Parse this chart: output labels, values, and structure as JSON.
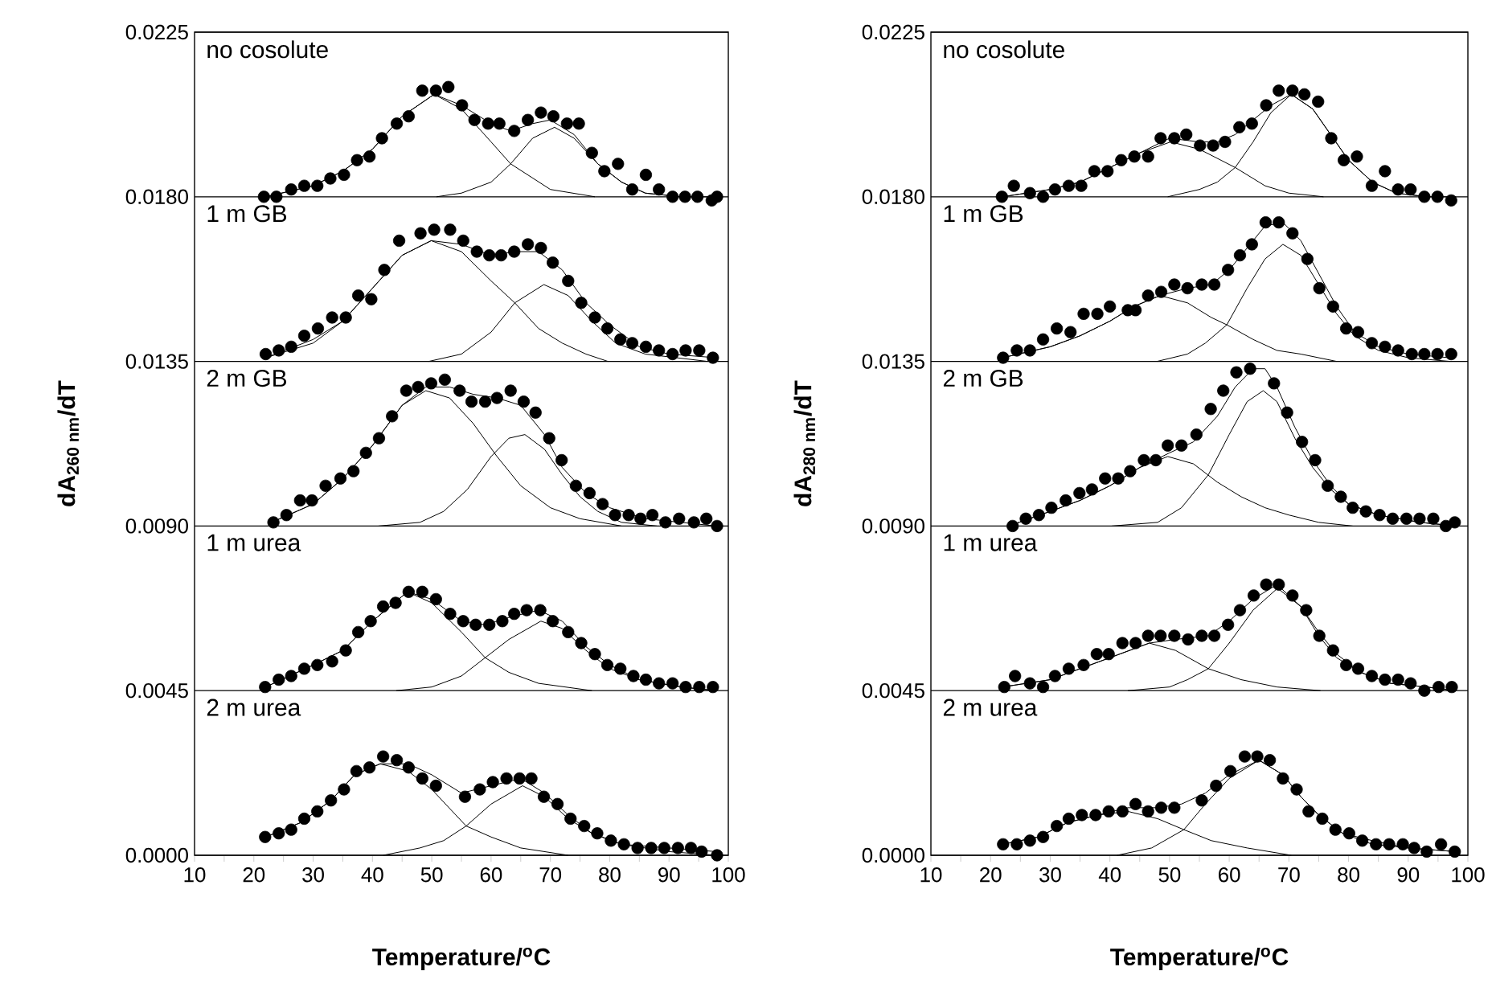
{
  "chart_data": [
    {
      "type": "scatter",
      "xlabel": "Temperature/$^{o}$C",
      "ylabel": "dA$_{260 nm}$/dT",
      "xlim": [
        10,
        100
      ],
      "ylim": [
        0,
        0.0225
      ],
      "xticks": [
        10,
        {
          "value": 15,
          "label": null
        },
        20,
        {
          "value": 25,
          "label": null
        },
        30,
        {
          "value": 35,
          "label": null
        },
        40,
        {
          "value": 45,
          "label": null
        },
        50,
        {
          "value": 55,
          "label": null
        },
        60,
        {
          "value": 65,
          "label": null
        },
        70,
        {
          "value": 75,
          "label": null
        },
        80,
        {
          "value": 85,
          "label": null
        },
        90,
        {
          "value": 95,
          "label": null
        },
        100
      ],
      "yticks": [
        {
          "value": 0,
          "label": "0.0000"
        },
        0.0045,
        {
          "value": 0.009,
          "label": "0.0090"
        },
        0.0135,
        {
          "value": 0.018,
          "label": "0.0180"
        },
        0.0225
      ],
      "grid": "y",
      "annotations": [
        "no cosolute",
        "1 m GB",
        "2 m GB",
        "1 m urea",
        "2 m urea"
      ],
      "series": [
        {
          "color": "#000000",
          "marker": "circle",
          "x": [
            21.7,
            23.8,
            26.3,
            28.5,
            30.7,
            32.9,
            35.2,
            37.4,
            39.5,
            41.6,
            44.1,
            46.1,
            48.4,
            50.7,
            52.8,
            55.1,
            57.2,
            59.5,
            61.4,
            63.9,
            66.2,
            68.4,
            70.5,
            72.8,
            74.8,
            77.0,
            79.1,
            81.4,
            83.8,
            86.1,
            88.3,
            90.6,
            92.7,
            94.8,
            97.2,
            98.1
          ],
          "values": [
            0.018,
            0.018,
            0.0182,
            0.0183,
            0.0183,
            0.0185,
            0.0186,
            0.019,
            0.0191,
            0.0196,
            0.02,
            0.0202,
            0.0209,
            0.0209,
            0.021,
            0.0205,
            0.0201,
            0.02,
            0.02,
            0.0198,
            0.0201,
            0.0203,
            0.0202,
            0.02,
            0.02,
            0.0192,
            0.0187,
            0.0189,
            0.0182,
            0.0186,
            0.0182,
            0.018,
            0.018,
            0.018,
            0.0179,
            0.018
          ]
        },
        {
          "type": "line",
          "color": "#000000",
          "marker": "none",
          "x": [
            22,
            30,
            35,
            40,
            45,
            50.4,
            55,
            60,
            63.3,
            67,
            70,
            74,
            78,
            82,
            86,
            92,
            98
          ],
          "values": [
            0.018,
            0.0183,
            0.0187,
            0.0193,
            0.0202,
            0.0208,
            0.0205,
            0.02,
            0.0198,
            0.02,
            0.0201,
            0.0197,
            0.0189,
            0.0184,
            0.0181,
            0.018,
            0.018
          ]
        },
        {
          "type": "line",
          "color": "#000000",
          "marker": "none",
          "x": [
            22,
            30,
            35,
            40,
            45,
            50.4,
            55,
            60,
            63.3,
            70,
            77.5
          ],
          "values": [
            0.018,
            0.0183,
            0.0187,
            0.0193,
            0.0202,
            0.0208,
            0.0204,
            0.0195,
            0.0189,
            0.0182,
            0.018
          ]
        },
        {
          "type": "line",
          "color": "#000000",
          "marker": "none",
          "x": [
            50.8,
            55,
            60,
            63.3,
            67,
            70.7,
            74,
            78,
            82,
            86,
            92
          ],
          "values": [
            0.018,
            0.0181,
            0.0184,
            0.0189,
            0.0196,
            0.0199,
            0.0196,
            0.0189,
            0.0184,
            0.0181,
            0.018
          ]
        },
        {
          "color": "#000000",
          "marker": "circle",
          "x": [
            22.0,
            24.2,
            26.3,
            28.5,
            30.8,
            33.2,
            35.5,
            37.6,
            39.8,
            42.0,
            44.5,
            48.1,
            50.4,
            53.1,
            55.3,
            57.6,
            59.7,
            61.7,
            63.9,
            66.2,
            68.4,
            70.4,
            73.0,
            75.2,
            77.5,
            79.6,
            81.8,
            83.8,
            86.1,
            88.3,
            90.6,
            92.8,
            95.1,
            97.4
          ],
          "values": [
            0.0137,
            0.0138,
            0.0139,
            0.0142,
            0.0144,
            0.0147,
            0.0147,
            0.0153,
            0.0152,
            0.016,
            0.0168,
            0.017,
            0.0171,
            0.0171,
            0.0168,
            0.0165,
            0.0164,
            0.0164,
            0.0165,
            0.0167,
            0.0166,
            0.0162,
            0.0157,
            0.0151,
            0.0147,
            0.0144,
            0.0141,
            0.014,
            0.0139,
            0.0138,
            0.0137,
            0.0138,
            0.0138,
            0.0136
          ]
        },
        {
          "type": "line",
          "color": "#000000",
          "marker": "none",
          "x": [
            22,
            30,
            35,
            40,
            45,
            49.9,
            55,
            60,
            64,
            68,
            72,
            76,
            80,
            85,
            90,
            98
          ],
          "values": [
            0.0136,
            0.0141,
            0.0146,
            0.0155,
            0.0164,
            0.0168,
            0.0167,
            0.0164,
            0.0165,
            0.0165,
            0.016,
            0.0151,
            0.0145,
            0.0139,
            0.0137,
            0.0136
          ]
        },
        {
          "type": "line",
          "color": "#000000",
          "marker": "none",
          "x": [
            22,
            30,
            35,
            40,
            45,
            49.9,
            55,
            60,
            64,
            68,
            72,
            76,
            79.7
          ],
          "values": [
            0.0136,
            0.014,
            0.0146,
            0.0155,
            0.0164,
            0.0168,
            0.0165,
            0.0157,
            0.0151,
            0.0144,
            0.014,
            0.0137,
            0.0135
          ]
        },
        {
          "type": "line",
          "color": "#000000",
          "marker": "none",
          "x": [
            49.5,
            55,
            60,
            64,
            68.9,
            73,
            77,
            81,
            86,
            96.5
          ],
          "values": [
            0.0135,
            0.0137,
            0.0143,
            0.0151,
            0.0156,
            0.0153,
            0.0146,
            0.014,
            0.0137,
            0.0135
          ]
        },
        {
          "color": "#000000",
          "marker": "circle",
          "x": [
            23.3,
            25.5,
            27.8,
            29.8,
            32.1,
            34.6,
            36.8,
            38.9,
            41.1,
            43.3,
            45.7,
            47.7,
            49.9,
            52.2,
            54.7,
            56.7,
            59.0,
            61.0,
            63.3,
            65.5,
            67.5,
            69.8,
            71.9,
            74.3,
            76.6,
            78.8,
            80.9,
            83.2,
            85.2,
            87.2,
            89.4,
            91.7,
            94.2,
            96.3,
            98.1
          ],
          "values": [
            0.0091,
            0.0093,
            0.0097,
            0.0097,
            0.0101,
            0.0103,
            0.0105,
            0.011,
            0.0114,
            0.012,
            0.0127,
            0.0128,
            0.0129,
            0.013,
            0.0127,
            0.0124,
            0.0124,
            0.0125,
            0.0127,
            0.0124,
            0.0121,
            0.0114,
            0.0108,
            0.0101,
            0.0099,
            0.0096,
            0.0093,
            0.0093,
            0.0092,
            0.0093,
            0.0091,
            0.0092,
            0.0091,
            0.0092,
            0.009
          ]
        },
        {
          "type": "line",
          "color": "#000000",
          "marker": "none",
          "x": [
            23,
            30,
            35,
            40,
            45,
            49,
            53,
            57,
            61,
            65,
            69,
            72,
            76,
            80,
            86,
            92,
            98
          ],
          "values": [
            0.0091,
            0.0096,
            0.0103,
            0.0112,
            0.0123,
            0.0128,
            0.0128,
            0.0126,
            0.0125,
            0.0123,
            0.0115,
            0.0106,
            0.0099,
            0.0095,
            0.0092,
            0.0091,
            0.009
          ]
        },
        {
          "type": "line",
          "color": "#000000",
          "marker": "none",
          "x": [
            23,
            30,
            35,
            40,
            45,
            49,
            53,
            57,
            61,
            65,
            70,
            75,
            82
          ],
          "values": [
            0.0091,
            0.0096,
            0.0103,
            0.0112,
            0.0123,
            0.0127,
            0.0125,
            0.0118,
            0.0109,
            0.0101,
            0.0095,
            0.0092,
            0.009
          ]
        },
        {
          "type": "line",
          "color": "#000000",
          "marker": "none",
          "x": [
            41,
            48,
            52,
            56,
            60,
            63,
            65.7,
            69,
            72,
            75,
            78,
            82,
            88
          ],
          "values": [
            0.009,
            0.0091,
            0.0094,
            0.01,
            0.0109,
            0.0114,
            0.0115,
            0.0111,
            0.0104,
            0.0098,
            0.0094,
            0.0091,
            0.009
          ]
        },
        {
          "color": "#000000",
          "marker": "circle",
          "x": [
            21.9,
            24.2,
            26.3,
            28.5,
            30.7,
            33.2,
            35.5,
            37.6,
            39.7,
            41.8,
            43.9,
            46.1,
            48.4,
            50.7,
            53.1,
            55.3,
            57.4,
            59.7,
            61.9,
            63.9,
            66.0,
            68.3,
            70.4,
            73.0,
            75.2,
            77.5,
            79.6,
            81.8,
            84.0,
            86.1,
            88.3,
            90.6,
            92.8,
            95.1,
            97.4
          ],
          "values": [
            0.0046,
            0.0048,
            0.0049,
            0.0051,
            0.0052,
            0.0053,
            0.0056,
            0.0061,
            0.0064,
            0.0068,
            0.0069,
            0.0072,
            0.0072,
            0.007,
            0.0066,
            0.0064,
            0.0063,
            0.0063,
            0.0064,
            0.0066,
            0.0067,
            0.0067,
            0.0064,
            0.0061,
            0.0058,
            0.0055,
            0.0052,
            0.0051,
            0.0049,
            0.0048,
            0.0047,
            0.0047,
            0.0046,
            0.0046,
            0.0046
          ]
        },
        {
          "type": "line",
          "color": "#000000",
          "marker": "none",
          "x": [
            22,
            30,
            35,
            40,
            45.9,
            50,
            55,
            59,
            63,
            68,
            72,
            76,
            80,
            85,
            92,
            98
          ],
          "values": [
            0.0046,
            0.0052,
            0.0056,
            0.0064,
            0.0072,
            0.007,
            0.0064,
            0.0063,
            0.0065,
            0.0067,
            0.0064,
            0.0057,
            0.0052,
            0.0048,
            0.0046,
            0.0045
          ]
        },
        {
          "type": "line",
          "color": "#000000",
          "marker": "none",
          "x": [
            22,
            30,
            35,
            40,
            45.9,
            50,
            55,
            59,
            63,
            68,
            77
          ],
          "values": [
            0.0046,
            0.0052,
            0.0056,
            0.0064,
            0.0072,
            0.0069,
            0.0061,
            0.0054,
            0.005,
            0.0047,
            0.0045
          ]
        },
        {
          "type": "line",
          "color": "#000000",
          "marker": "none",
          "x": [
            44,
            50,
            55,
            59,
            63,
            68.4,
            72,
            76,
            80,
            85,
            92,
            98
          ],
          "values": [
            0.0045,
            0.0046,
            0.0049,
            0.0054,
            0.0059,
            0.0064,
            0.0062,
            0.0056,
            0.0051,
            0.0048,
            0.0046,
            0.0045
          ]
        },
        {
          "color": "#000000",
          "marker": "circle",
          "x": [
            21.9,
            24.2,
            26.3,
            28.5,
            30.7,
            33.0,
            35.2,
            37.3,
            39.5,
            41.8,
            44.1,
            46.1,
            48.4,
            50.7,
            55.6,
            58.1,
            60.3,
            62.6,
            64.8,
            66.8,
            68.9,
            71.2,
            73.4,
            75.7,
            77.9,
            80.2,
            82.4,
            84.7,
            87.0,
            89.2,
            91.5,
            93.7,
            95.5,
            98.1
          ],
          "values": [
            0.0005,
            0.0006,
            0.0007,
            0.001,
            0.0012,
            0.0015,
            0.0018,
            0.0023,
            0.0024,
            0.0027,
            0.0026,
            0.0024,
            0.0021,
            0.0019,
            0.0016,
            0.0018,
            0.002,
            0.0021,
            0.0021,
            0.0021,
            0.0016,
            0.0014,
            0.001,
            0.0008,
            0.0006,
            0.0004,
            0.0003,
            0.0002,
            0.0002,
            0.0002,
            0.0002,
            0.0002,
            0.0001,
            0.0
          ]
        },
        {
          "type": "line",
          "color": "#000000",
          "marker": "none",
          "x": [
            22,
            28,
            33,
            37,
            41.3,
            46,
            50,
            55,
            60,
            65,
            69,
            73,
            77,
            82,
            90,
            98
          ],
          "values": [
            0.0005,
            0.0009,
            0.0015,
            0.0022,
            0.0025,
            0.0025,
            0.0022,
            0.0017,
            0.0019,
            0.0021,
            0.0017,
            0.0011,
            0.0006,
            0.0003,
            0.0002,
            0.0001
          ]
        },
        {
          "type": "line",
          "color": "#000000",
          "marker": "none",
          "x": [
            22,
            28,
            33,
            37,
            41.3,
            46,
            50,
            55.8,
            60,
            65,
            73
          ],
          "values": [
            0.0005,
            0.0009,
            0.0015,
            0.0022,
            0.0025,
            0.0023,
            0.0018,
            0.0008,
            0.0005,
            0.0002,
            0.0
          ]
        },
        {
          "type": "line",
          "color": "#000000",
          "marker": "none",
          "x": [
            41.8,
            48,
            52,
            55.8,
            60,
            65.3,
            69,
            73,
            77,
            82,
            90,
            98
          ],
          "values": [
            0.0,
            0.0002,
            0.0004,
            0.0008,
            0.0014,
            0.0019,
            0.0016,
            0.001,
            0.0006,
            0.0003,
            0.0001,
            0.0
          ]
        }
      ]
    },
    {
      "type": "scatter",
      "xlabel": "Temperature/$^{o}$C",
      "ylabel": "dA$_{280 nm}$/dT",
      "xlim": [
        10,
        100
      ],
      "ylim": [
        0,
        0.0225
      ],
      "xticks": [
        10,
        {
          "value": 15,
          "label": null
        },
        20,
        {
          "value": 25,
          "label": null
        },
        30,
        {
          "value": 35,
          "label": null
        },
        40,
        {
          "value": 45,
          "label": null
        },
        50,
        {
          "value": 55,
          "label": null
        },
        60,
        {
          "value": 65,
          "label": null
        },
        70,
        {
          "value": 75,
          "label": null
        },
        80,
        {
          "value": 85,
          "label": null
        },
        90,
        {
          "value": 95,
          "label": null
        },
        100
      ],
      "yticks": [
        {
          "value": 0,
          "label": "0.0000"
        },
        0.0045,
        {
          "value": 0.009,
          "label": "0.0090"
        },
        0.0135,
        {
          "value": 0.018,
          "label": "0.0180"
        },
        0.0225
      ],
      "grid": "y",
      "annotations": [
        "no cosolute",
        "1 m GB",
        "2 m GB",
        "1 m urea",
        "2 m urea"
      ],
      "series": [
        {
          "color": "#000000",
          "marker": "circle",
          "x": [
            21.9,
            23.9,
            26.6,
            28.8,
            30.8,
            33.1,
            35.2,
            37.4,
            39.6,
            41.9,
            44.1,
            46.4,
            48.5,
            50.8,
            52.8,
            55.1,
            57.3,
            59.3,
            61.7,
            63.8,
            66.2,
            68.3,
            70.6,
            72.6,
            74.9,
            77.1,
            79.2,
            81.4,
            83.9,
            86.1,
            88.3,
            90.4,
            92.7,
            94.9,
            97.2
          ],
          "values": [
            0.018,
            0.0183,
            0.0181,
            0.018,
            0.0182,
            0.0183,
            0.0183,
            0.0187,
            0.0187,
            0.019,
            0.0191,
            0.0191,
            0.0196,
            0.0196,
            0.0197,
            0.0194,
            0.0194,
            0.0195,
            0.0199,
            0.02,
            0.0205,
            0.0209,
            0.0209,
            0.0208,
            0.0206,
            0.0196,
            0.019,
            0.0191,
            0.0183,
            0.0187,
            0.0182,
            0.0182,
            0.018,
            0.018,
            0.0179
          ]
        },
        {
          "type": "line",
          "color": "#000000",
          "marker": "none",
          "x": [
            22,
            30,
            35,
            40,
            45,
            50,
            55,
            58,
            61,
            64,
            67,
            70.4,
            74,
            77,
            80,
            84,
            88,
            93,
            98
          ],
          "values": [
            0.018,
            0.0182,
            0.0184,
            0.0188,
            0.0192,
            0.0196,
            0.0195,
            0.0195,
            0.0197,
            0.0201,
            0.0205,
            0.0208,
            0.0204,
            0.0197,
            0.019,
            0.0184,
            0.0181,
            0.018,
            0.018
          ]
        },
        {
          "type": "line",
          "color": "#000000",
          "marker": "none",
          "x": [
            22,
            30,
            35,
            40,
            45,
            50.2,
            55,
            61,
            66,
            70,
            75.8
          ],
          "values": [
            0.018,
            0.0182,
            0.0184,
            0.0188,
            0.0192,
            0.0195,
            0.0193,
            0.0188,
            0.0183,
            0.0181,
            0.018
          ]
        },
        {
          "type": "line",
          "color": "#000000",
          "marker": "none",
          "x": [
            49.7,
            55,
            58,
            61,
            64,
            67,
            70.4,
            74,
            77,
            80,
            84,
            88,
            93.3
          ],
          "values": [
            0.018,
            0.0182,
            0.0184,
            0.0188,
            0.0195,
            0.0203,
            0.0208,
            0.0204,
            0.0197,
            0.019,
            0.0184,
            0.0181,
            0.018
          ]
        },
        {
          "color": "#000000",
          "marker": "circle",
          "x": [
            22.1,
            24.4,
            26.6,
            28.8,
            31.1,
            33.4,
            35.6,
            37.9,
            40.0,
            43.0,
            44.3,
            46.4,
            48.6,
            50.8,
            53.0,
            55.4,
            57.5,
            59.8,
            61.8,
            63.8,
            66.1,
            68.3,
            70.6,
            73.1,
            75.1,
            77.4,
            79.6,
            81.6,
            83.9,
            86.1,
            88.3,
            90.6,
            92.7,
            94.9,
            97.2
          ],
          "values": [
            0.0136,
            0.0138,
            0.0138,
            0.0141,
            0.0144,
            0.0143,
            0.0148,
            0.0148,
            0.015,
            0.0149,
            0.0149,
            0.0153,
            0.0154,
            0.0156,
            0.0155,
            0.0156,
            0.0156,
            0.016,
            0.0164,
            0.0167,
            0.0173,
            0.0173,
            0.017,
            0.0163,
            0.0155,
            0.015,
            0.0144,
            0.0143,
            0.014,
            0.0139,
            0.0138,
            0.0137,
            0.0137,
            0.0137,
            0.0137
          ]
        },
        {
          "type": "line",
          "color": "#000000",
          "marker": "none",
          "x": [
            22,
            30,
            35,
            40,
            44,
            48.4,
            53,
            57,
            60,
            63,
            66,
            69,
            72,
            75,
            78,
            81,
            85,
            90,
            97
          ],
          "values": [
            0.0136,
            0.0139,
            0.0142,
            0.0146,
            0.015,
            0.0153,
            0.0155,
            0.0156,
            0.016,
            0.0166,
            0.0172,
            0.0173,
            0.0168,
            0.0159,
            0.015,
            0.0143,
            0.0139,
            0.0137,
            0.0136
          ]
        },
        {
          "type": "line",
          "color": "#000000",
          "marker": "none",
          "x": [
            22,
            30,
            35,
            40,
            44,
            48.4,
            53,
            57,
            59.6,
            64,
            68,
            72,
            78
          ],
          "values": [
            0.0136,
            0.0139,
            0.0142,
            0.0146,
            0.015,
            0.0153,
            0.0151,
            0.0147,
            0.0145,
            0.0141,
            0.0138,
            0.0137,
            0.0135
          ]
        },
        {
          "type": "line",
          "color": "#000000",
          "marker": "none",
          "x": [
            47.9,
            53,
            56,
            59.6,
            63,
            66,
            69,
            72,
            75,
            78,
            81,
            85,
            90,
            97
          ],
          "values": [
            0.0135,
            0.0137,
            0.014,
            0.0145,
            0.0155,
            0.0163,
            0.0167,
            0.0164,
            0.0156,
            0.0148,
            0.0142,
            0.0138,
            0.0136,
            0.0135
          ]
        },
        {
          "color": "#000000",
          "marker": "circle",
          "x": [
            23.7,
            25.9,
            28.1,
            30.2,
            32.6,
            34.9,
            37.0,
            39.2,
            41.4,
            43.4,
            45.7,
            47.7,
            49.7,
            52.0,
            54.5,
            56.9,
            59.0,
            61.2,
            63.5,
            67.5,
            69.7,
            72.2,
            74.4,
            76.5,
            78.7,
            80.7,
            82.9,
            85.2,
            87.4,
            89.7,
            91.9,
            94.2,
            96.3,
            97.8
          ],
          "values": [
            0.009,
            0.0092,
            0.0093,
            0.0095,
            0.0097,
            0.0099,
            0.01,
            0.0103,
            0.0103,
            0.0105,
            0.0108,
            0.0108,
            0.0112,
            0.0112,
            0.0115,
            0.0122,
            0.0127,
            0.0132,
            0.0133,
            0.0129,
            0.0121,
            0.0113,
            0.0108,
            0.0101,
            0.0098,
            0.0095,
            0.0094,
            0.0093,
            0.0092,
            0.0092,
            0.0092,
            0.0092,
            0.009,
            0.0091
          ]
        },
        {
          "type": "line",
          "color": "#000000",
          "marker": "none",
          "x": [
            23,
            30,
            35,
            40,
            45,
            50,
            54,
            58,
            61,
            64,
            66,
            68,
            71,
            74,
            77,
            80,
            85,
            92,
            98
          ],
          "values": [
            0.009,
            0.0094,
            0.0097,
            0.0101,
            0.0106,
            0.011,
            0.0113,
            0.012,
            0.0128,
            0.0133,
            0.0133,
            0.0128,
            0.0117,
            0.0108,
            0.0101,
            0.0096,
            0.0093,
            0.0091,
            0.009
          ]
        },
        {
          "type": "line",
          "color": "#000000",
          "marker": "none",
          "x": [
            23,
            30,
            35,
            40,
            45,
            49.7,
            54,
            58,
            62,
            66,
            70,
            75,
            80.7
          ],
          "values": [
            0.009,
            0.0094,
            0.0097,
            0.0101,
            0.0106,
            0.0109,
            0.0107,
            0.0102,
            0.0098,
            0.0095,
            0.0093,
            0.0091,
            0.009
          ]
        },
        {
          "type": "line",
          "color": "#000000",
          "marker": "none",
          "x": [
            40.3,
            48,
            52,
            56.5,
            60,
            63,
            65.7,
            68,
            71,
            74,
            77,
            80,
            85,
            92,
            98
          ],
          "values": [
            0.009,
            0.0091,
            0.0095,
            0.0104,
            0.0115,
            0.0124,
            0.0127,
            0.0124,
            0.0114,
            0.0106,
            0.01,
            0.0096,
            0.0093,
            0.0091,
            0.009
          ]
        },
        {
          "color": "#000000",
          "marker": "circle",
          "x": [
            22.3,
            24.1,
            26.6,
            28.8,
            30.8,
            33.1,
            35.6,
            37.8,
            39.8,
            42.1,
            44.3,
            46.4,
            48.5,
            50.8,
            53.1,
            55.4,
            57.5,
            59.8,
            61.8,
            64.1,
            66.2,
            68.3,
            70.6,
            72.9,
            75.1,
            77.4,
            79.6,
            81.6,
            83.9,
            86.1,
            88.3,
            90.4,
            92.7,
            95.1,
            97.3
          ],
          "values": [
            0.0046,
            0.0049,
            0.0047,
            0.0046,
            0.0049,
            0.0051,
            0.0052,
            0.0055,
            0.0055,
            0.0058,
            0.0058,
            0.006,
            0.006,
            0.006,
            0.0059,
            0.006,
            0.006,
            0.0063,
            0.0067,
            0.0071,
            0.0074,
            0.0074,
            0.0071,
            0.0067,
            0.006,
            0.0056,
            0.0052,
            0.0051,
            0.0049,
            0.0048,
            0.0048,
            0.0047,
            0.0045,
            0.0046,
            0.0046
          ]
        },
        {
          "type": "line",
          "color": "#000000",
          "marker": "none",
          "x": [
            22,
            30,
            35,
            40,
            46.6,
            51,
            56.5,
            60,
            64,
            68,
            72,
            75,
            78,
            82,
            87,
            93,
            98
          ],
          "values": [
            0.0046,
            0.0048,
            0.0051,
            0.0054,
            0.0058,
            0.0059,
            0.006,
            0.0064,
            0.007,
            0.0074,
            0.0068,
            0.0061,
            0.0055,
            0.005,
            0.0047,
            0.0046,
            0.0045
          ]
        },
        {
          "type": "line",
          "color": "#000000",
          "marker": "none",
          "x": [
            22,
            30,
            35,
            40,
            46.6,
            51,
            56.5,
            62,
            68,
            75.3
          ],
          "values": [
            0.0046,
            0.0048,
            0.0051,
            0.0054,
            0.0058,
            0.0056,
            0.0051,
            0.0048,
            0.0046,
            0.0045
          ]
        },
        {
          "type": "line",
          "color": "#000000",
          "marker": "none",
          "x": [
            43,
            50,
            53,
            56.5,
            60,
            64,
            68.1,
            72,
            75,
            78,
            82,
            87,
            93,
            98
          ],
          "values": [
            0.0045,
            0.0046,
            0.0048,
            0.0051,
            0.0058,
            0.0067,
            0.0073,
            0.0068,
            0.006,
            0.0054,
            0.005,
            0.0047,
            0.0046,
            0.0045
          ]
        },
        {
          "color": "#000000",
          "marker": "circle",
          "x": [
            22.1,
            24.4,
            26.6,
            28.8,
            31.1,
            33.1,
            35.3,
            37.6,
            39.8,
            42.1,
            44.3,
            46.4,
            48.6,
            50.8,
            55.4,
            57.8,
            60.2,
            62.6,
            64.7,
            66.8,
            69.0,
            71.3,
            73.3,
            75.6,
            77.8,
            80.1,
            82.3,
            84.6,
            86.8,
            89.1,
            91.0,
            93.1,
            95.5,
            97.8
          ],
          "values": [
            0.0003,
            0.0003,
            0.0004,
            0.0005,
            0.0008,
            0.001,
            0.0011,
            0.0011,
            0.0012,
            0.0012,
            0.0014,
            0.0012,
            0.0013,
            0.0013,
            0.0015,
            0.0019,
            0.0023,
            0.0027,
            0.0027,
            0.0026,
            0.0021,
            0.0018,
            0.0012,
            0.001,
            0.0007,
            0.0006,
            0.0004,
            0.0003,
            0.0003,
            0.0003,
            0.0002,
            0.0001,
            0.0003,
            0.0001
          ]
        },
        {
          "type": "line",
          "color": "#000000",
          "marker": "none",
          "x": [
            22,
            28,
            33,
            38,
            43,
            48,
            52,
            56,
            60,
            65,
            69,
            72,
            75,
            79,
            84,
            90,
            98
          ],
          "values": [
            0.0003,
            0.0005,
            0.0009,
            0.0011,
            0.0013,
            0.0013,
            0.0014,
            0.0017,
            0.0022,
            0.0026,
            0.0022,
            0.0016,
            0.0011,
            0.0006,
            0.0004,
            0.0002,
            0.0001
          ]
        },
        {
          "type": "line",
          "color": "#000000",
          "marker": "none",
          "x": [
            22,
            28,
            33,
            38,
            43,
            48,
            52.4,
            57,
            63,
            70.4
          ],
          "values": [
            0.0003,
            0.0005,
            0.0009,
            0.0011,
            0.0012,
            0.001,
            0.0007,
            0.0004,
            0.0002,
            0.0
          ]
        },
        {
          "type": "line",
          "color": "#000000",
          "marker": "none",
          "x": [
            41.2,
            47,
            52.4,
            56,
            60,
            65,
            69,
            72,
            75,
            79,
            84,
            90,
            98
          ],
          "values": [
            0.0,
            0.0002,
            0.0007,
            0.0014,
            0.0021,
            0.0026,
            0.0022,
            0.0016,
            0.0011,
            0.0006,
            0.0003,
            0.0002,
            0.0001
          ]
        }
      ]
    }
  ]
}
